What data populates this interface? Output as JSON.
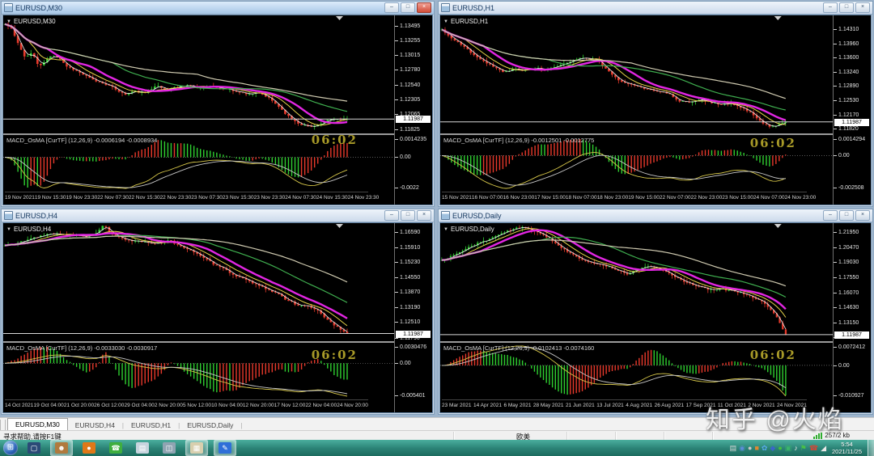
{
  "window_chrome": {
    "minimize_glyph": "–",
    "restore_glyph": "□",
    "close_glyph": "×"
  },
  "colors": {
    "candle_up": "#2fcf30",
    "candle_down": "#e8392b",
    "ma_lines": [
      "#f2f2f2",
      "#e6d44a",
      "#e326e3",
      "#3fae4f",
      "#cfcab0"
    ],
    "macd_line": "#d8c84a",
    "macd_signal": "#c8c8c8",
    "hist_up": "#2fcf30",
    "hist_down": "#e8392b",
    "bid_line": "#d8d8d8",
    "clock_text": "#a89a28",
    "taskbar": "#2a8174"
  },
  "chart_data": [
    {
      "type": "candlestick",
      "id": "m30",
      "active": true,
      "title": "EURUSD,M30",
      "symbol_label": "EURUSD,M30",
      "indicator_label": "MACD_OsMA [CurTF] (12,26,9) -0.0006194 -0.0008934",
      "clock": "06:02",
      "current_price": "1.11987",
      "price_ticks": [
        "1.13495",
        "1.13255",
        "1.13015",
        "1.12780",
        "1.12540",
        "1.12305",
        "1.12065",
        "1.11825"
      ],
      "macd_ticks": {
        "top": "0.0014235",
        "zero": "0.00",
        "bottom": "-0.0022"
      },
      "time_axis": [
        "19 Nov 2021",
        "19 Nov 15:30",
        "19 Nov 23:30",
        "22 Nov 07:30",
        "22 Nov 15:30",
        "22 Nov 23:30",
        "23 Nov 07:30",
        "23 Nov 15:30",
        "23 Nov 23:30",
        "24 Nov 07:30",
        "24 Nov 15:30",
        "24 Nov 23:30"
      ],
      "ylim": {
        "top": 1.1366,
        "bottom": 1.11755
      },
      "bars": 106,
      "seed": 11,
      "ma_periods": [
        3,
        8,
        14,
        34,
        60
      ],
      "keypoints": [
        [
          0,
          1.1352
        ],
        [
          0.02,
          1.1344
        ],
        [
          0.04,
          1.1318
        ],
        [
          0.06,
          1.1298
        ],
        [
          0.08,
          1.1306
        ],
        [
          0.1,
          1.1282
        ],
        [
          0.12,
          1.1294
        ],
        [
          0.14,
          1.1302
        ],
        [
          0.16,
          1.1297
        ],
        [
          0.18,
          1.1284
        ],
        [
          0.2,
          1.1279
        ],
        [
          0.23,
          1.127
        ],
        [
          0.26,
          1.1261
        ],
        [
          0.29,
          1.1256
        ],
        [
          0.32,
          1.1248
        ],
        [
          0.35,
          1.1238
        ],
        [
          0.38,
          1.1244
        ],
        [
          0.41,
          1.124
        ],
        [
          0.44,
          1.1253
        ],
        [
          0.47,
          1.1246
        ],
        [
          0.5,
          1.125
        ],
        [
          0.53,
          1.1254
        ],
        [
          0.56,
          1.1249
        ],
        [
          0.59,
          1.1252
        ],
        [
          0.62,
          1.1249
        ],
        [
          0.65,
          1.1247
        ],
        [
          0.68,
          1.1243
        ],
        [
          0.71,
          1.1239
        ],
        [
          0.74,
          1.1241
        ],
        [
          0.77,
          1.1233
        ],
        [
          0.8,
          1.1219
        ],
        [
          0.83,
          1.1202
        ],
        [
          0.86,
          1.1191
        ],
        [
          0.89,
          1.1186
        ],
        [
          0.92,
          1.119
        ],
        [
          0.95,
          1.1198
        ],
        [
          1,
          1.1199
        ]
      ]
    },
    {
      "type": "candlestick",
      "id": "h1",
      "active": false,
      "title": "EURUSD,H1",
      "symbol_label": "EURUSD,H1",
      "indicator_label": "MACD_OsMA [CurTF] (12,26,9) -0.0012501 -0.0012775",
      "clock": "06:02",
      "current_price": "1.11987",
      "price_ticks": [
        "1.14310",
        "1.13960",
        "1.13600",
        "1.13240",
        "1.12890",
        "1.12530",
        "1.12170",
        "1.11820"
      ],
      "macd_ticks": {
        "top": "0.0014294",
        "zero": "0.00",
        "bottom": "-0.002508"
      },
      "time_axis": [
        "15 Nov 2021",
        "16 Nov 07:00",
        "16 Nov 23:00",
        "17 Nov 15:00",
        "18 Nov 07:00",
        "18 Nov 23:00",
        "19 Nov 15:00",
        "22 Nov 07:00",
        "22 Nov 23:00",
        "23 Nov 15:00",
        "24 Nov 07:00",
        "24 Nov 23:00"
      ],
      "ylim": {
        "top": 1.1466,
        "bottom": 1.117
      },
      "bars": 108,
      "seed": 22,
      "ma_periods": [
        3,
        8,
        14,
        34,
        60
      ],
      "keypoints": [
        [
          0,
          1.143
        ],
        [
          0.03,
          1.1408
        ],
        [
          0.06,
          1.139
        ],
        [
          0.09,
          1.137
        ],
        [
          0.12,
          1.1352
        ],
        [
          0.15,
          1.1338
        ],
        [
          0.18,
          1.1322
        ],
        [
          0.21,
          1.1333
        ],
        [
          0.24,
          1.1329
        ],
        [
          0.27,
          1.1334
        ],
        [
          0.3,
          1.1331
        ],
        [
          0.33,
          1.1338
        ],
        [
          0.36,
          1.1347
        ],
        [
          0.39,
          1.1357
        ],
        [
          0.42,
          1.136
        ],
        [
          0.45,
          1.1355
        ],
        [
          0.48,
          1.133
        ],
        [
          0.51,
          1.1305
        ],
        [
          0.54,
          1.1295
        ],
        [
          0.57,
          1.1287
        ],
        [
          0.6,
          1.1281
        ],
        [
          0.63,
          1.1276
        ],
        [
          0.66,
          1.1269
        ],
        [
          0.69,
          1.1252
        ],
        [
          0.72,
          1.1248
        ],
        [
          0.75,
          1.1256
        ],
        [
          0.78,
          1.1248
        ],
        [
          0.81,
          1.1242
        ],
        [
          0.84,
          1.1245
        ],
        [
          0.87,
          1.1235
        ],
        [
          0.9,
          1.122
        ],
        [
          0.93,
          1.1198
        ],
        [
          0.96,
          1.1186
        ],
        [
          1,
          1.1199
        ]
      ]
    },
    {
      "type": "candlestick",
      "id": "h4",
      "active": false,
      "title": "EURUSD,H4",
      "symbol_label": "EURUSD,H4",
      "indicator_label": "MACD_OsMA [CurTF] (12,26,9) -0.0033030 -0.0030917",
      "clock": "06:02",
      "current_price": "1.11987",
      "price_ticks": [
        "1.16590",
        "1.15910",
        "1.15230",
        "1.14550",
        "1.13870",
        "1.13190",
        "1.12510",
        "1.11790"
      ],
      "macd_ticks": {
        "top": "0.0030476",
        "zero": "0.00",
        "bottom": "-0.005401"
      },
      "time_axis": [
        "14 Oct 2021",
        "19 Oct 04:00",
        "21 Oct 20:00",
        "26 Oct 12:00",
        "29 Oct 04:00",
        "2 Nov 20:00",
        "5 Nov 12:00",
        "10 Nov 04:00",
        "12 Nov 20:00",
        "17 Nov 12:00",
        "22 Nov 04:00",
        "24 Nov 20:00"
      ],
      "ylim": {
        "top": 1.17,
        "bottom": 1.1164
      },
      "bars": 106,
      "seed": 33,
      "ma_periods": [
        3,
        8,
        14,
        34,
        60
      ],
      "keypoints": [
        [
          0,
          1.1598
        ],
        [
          0.04,
          1.1612
        ],
        [
          0.08,
          1.163
        ],
        [
          0.12,
          1.1648
        ],
        [
          0.16,
          1.1652
        ],
        [
          0.2,
          1.1645
        ],
        [
          0.24,
          1.1638
        ],
        [
          0.27,
          1.1658
        ],
        [
          0.29,
          1.1692
        ],
        [
          0.31,
          1.165
        ],
        [
          0.34,
          1.1632
        ],
        [
          0.37,
          1.162
        ],
        [
          0.4,
          1.1616
        ],
        [
          0.43,
          1.1604
        ],
        [
          0.46,
          1.1612
        ],
        [
          0.48,
          1.1628
        ],
        [
          0.5,
          1.1604
        ],
        [
          0.53,
          1.1585
        ],
        [
          0.56,
          1.156
        ],
        [
          0.59,
          1.1532
        ],
        [
          0.62,
          1.1506
        ],
        [
          0.65,
          1.1482
        ],
        [
          0.68,
          1.1458
        ],
        [
          0.71,
          1.1438
        ],
        [
          0.74,
          1.1415
        ],
        [
          0.77,
          1.1398
        ],
        [
          0.8,
          1.1378
        ],
        [
          0.82,
          1.1352
        ],
        [
          0.84,
          1.134
        ],
        [
          0.86,
          1.1324
        ],
        [
          0.88,
          1.133
        ],
        [
          0.9,
          1.1308
        ],
        [
          0.92,
          1.1298
        ],
        [
          0.94,
          1.1262
        ],
        [
          0.96,
          1.124
        ],
        [
          0.98,
          1.1216
        ],
        [
          1,
          1.1199
        ]
      ]
    },
    {
      "type": "candlestick",
      "id": "daily",
      "active": false,
      "title": "EURUSD,Daily",
      "symbol_label": "EURUSD,Daily",
      "indicator_label": "MACD_OsMA [CurTF] (12,26,9) -0.0102413 -0.0074160",
      "clock": "06:02",
      "current_price": "1.11987",
      "price_ticks": [
        "1.21950",
        "1.20470",
        "1.19030",
        "1.17550",
        "1.16070",
        "1.14630",
        "1.13150",
        "1.11710"
      ],
      "macd_ticks": {
        "top": "0.0072412",
        "zero": "0.00",
        "bottom": "-0.010927"
      },
      "time_axis": [
        "23 Mar 2021",
        "14 Apr 2021",
        "6 May 2021",
        "28 May 2021",
        "21 Jun 2021",
        "13 Jul 2021",
        "4 Aug 2021",
        "26 Aug 2021",
        "17 Sep 2021",
        "11 Oct 2021",
        "2 Nov 2021",
        "24 Nov 2021"
      ],
      "ylim": {
        "top": 1.2285,
        "bottom": 1.1135
      },
      "bars": 116,
      "seed": 44,
      "ma_periods": [
        3,
        8,
        14,
        34,
        60
      ],
      "keypoints": [
        [
          0,
          1.192
        ],
        [
          0.03,
          1.1965
        ],
        [
          0.06,
          1.2015
        ],
        [
          0.09,
          1.207
        ],
        [
          0.12,
          1.2105
        ],
        [
          0.15,
          1.2148
        ],
        [
          0.18,
          1.2195
        ],
        [
          0.21,
          1.223
        ],
        [
          0.24,
          1.2243
        ],
        [
          0.27,
          1.221
        ],
        [
          0.3,
          1.2165
        ],
        [
          0.33,
          1.209
        ],
        [
          0.36,
          1.202
        ],
        [
          0.39,
          1.1955
        ],
        [
          0.42,
          1.191
        ],
        [
          0.45,
          1.1888
        ],
        [
          0.48,
          1.1868
        ],
        [
          0.51,
          1.1828
        ],
        [
          0.54,
          1.179
        ],
        [
          0.57,
          1.1832
        ],
        [
          0.6,
          1.1868
        ],
        [
          0.63,
          1.184
        ],
        [
          0.66,
          1.1798
        ],
        [
          0.69,
          1.174
        ],
        [
          0.72,
          1.1698
        ],
        [
          0.75,
          1.1662
        ],
        [
          0.78,
          1.1636
        ],
        [
          0.81,
          1.1648
        ],
        [
          0.84,
          1.1628
        ],
        [
          0.87,
          1.1608
        ],
        [
          0.9,
          1.1568
        ],
        [
          0.93,
          1.1528
        ],
        [
          0.95,
          1.1468
        ],
        [
          0.97,
          1.1388
        ],
        [
          0.99,
          1.1258
        ],
        [
          1,
          1.1199
        ]
      ]
    }
  ],
  "tabs": {
    "items": [
      {
        "label": "EURUSD,M30",
        "active": true
      },
      {
        "label": "EURUSD,H4",
        "active": false
      },
      {
        "label": "EURUSD,H1",
        "active": false
      },
      {
        "label": "EURUSD,Daily",
        "active": false
      }
    ]
  },
  "status_bar": {
    "help_text": "寻求帮助,请按F1键",
    "symbol_cn": "欧美",
    "connection": "257/2 kb"
  },
  "taskbar": {
    "start_glyph": "⊞",
    "apps": [
      {
        "name": "taskbar-display-app",
        "glyph": "▢",
        "bg": "#2b4a77",
        "active": false
      },
      {
        "name": "taskbar-remote-app",
        "glyph": "☻",
        "bg": "#b07a3e",
        "active": true
      },
      {
        "name": "taskbar-browser-app",
        "glyph": "●",
        "bg": "#e07818",
        "active": false
      },
      {
        "name": "taskbar-wechat-app",
        "glyph": "☎",
        "bg": "#3fae3f",
        "active": false
      },
      {
        "name": "taskbar-notepad-app",
        "glyph": "▤",
        "bg": "#c8d4de",
        "active": false
      },
      {
        "name": "taskbar-stocks-app",
        "glyph": "◫",
        "bg": "#8fa4b2",
        "active": false
      },
      {
        "name": "taskbar-image-app",
        "glyph": "▦",
        "bg": "#d8cfae",
        "active": true
      },
      {
        "name": "taskbar-mt4-app",
        "glyph": "✎",
        "bg": "#2f6fd8",
        "active": true
      }
    ],
    "tray_icons": [
      {
        "name": "tray-keyboard-icon",
        "glyph": "▤",
        "color": "#d8d8d8"
      },
      {
        "name": "tray-antivirus-icon",
        "glyph": "◉",
        "color": "#5b8dd8"
      },
      {
        "name": "tray-updater-icon",
        "glyph": "●",
        "color": "#c8c8c8"
      },
      {
        "name": "tray-package-icon",
        "glyph": "■",
        "color": "#e08830"
      },
      {
        "name": "tray-input-icon",
        "glyph": "✿",
        "color": "#58a8e8"
      },
      {
        "name": "tray-security-icon",
        "glyph": "◆",
        "color": "#3a66c8"
      },
      {
        "name": "tray-chat-icon",
        "glyph": "●",
        "color": "#45c03a"
      },
      {
        "name": "tray-stock-icon",
        "glyph": "▣",
        "color": "#3ab46a"
      },
      {
        "name": "tray-volume-icon",
        "glyph": "♪",
        "color": "#e8e8e8"
      },
      {
        "name": "tray-vpn-icon",
        "glyph": "⚑",
        "color": "#48c048"
      },
      {
        "name": "tray-phone-icon",
        "glyph": "☎",
        "color": "#d04838"
      },
      {
        "name": "tray-network-icon",
        "glyph": "◢",
        "color": "#e8e8e8"
      }
    ],
    "clock_time": "5:54",
    "clock_date": "2021/11/25"
  },
  "watermark": "知乎 @火焰"
}
